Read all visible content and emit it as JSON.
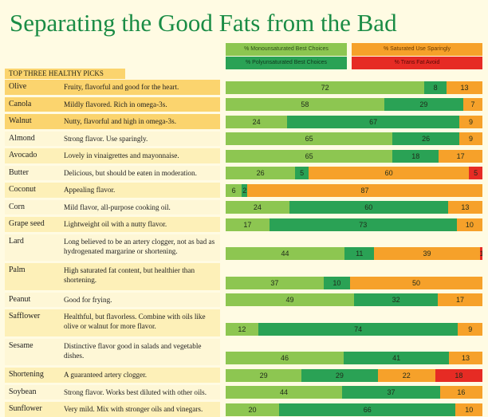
{
  "title": "Separating the Good Fats from the Bad",
  "section_header": "TOP THREE HEALTHY PICKS",
  "legend": {
    "mono": "% Monounsaturated   Best Choices",
    "poly": "% Polyunsaturated   Best Choices",
    "sat": "% Saturated   Use Sparingly",
    "trans": "% Trans Fat   Avoid"
  },
  "colors": {
    "mono": "#8dc651",
    "poly": "#2aa255",
    "sat": "#f6a12a",
    "trans": "#e62b24",
    "title": "#1a8c45",
    "highlight": "#fbd46e"
  },
  "chart_data": {
    "type": "bar",
    "orientation": "horizontal",
    "stacked": true,
    "title": "Separating the Good Fats from the Bad",
    "series": [
      {
        "name": "% Monounsaturated",
        "values": [
          72,
          58,
          24,
          65,
          65,
          26,
          6,
          24,
          17,
          44,
          37,
          49,
          12,
          46,
          29,
          44,
          20
        ]
      },
      {
        "name": "% Polyunsaturated",
        "values": [
          8,
          29,
          67,
          26,
          18,
          5,
          2,
          60,
          73,
          11,
          10,
          32,
          74,
          41,
          29,
          37,
          66
        ]
      },
      {
        "name": "% Saturated",
        "values": [
          13,
          7,
          9,
          9,
          17,
          60,
          87,
          13,
          10,
          39,
          50,
          17,
          9,
          13,
          22,
          16,
          10
        ]
      },
      {
        "name": "% Trans Fat",
        "values": [
          0,
          0,
          0,
          0,
          0,
          5,
          0,
          0,
          0,
          1,
          0,
          0,
          0,
          0,
          18,
          0,
          0
        ]
      }
    ],
    "rows": [
      {
        "name": "Olive",
        "desc": "Fruity, flavorful and good for the heart.",
        "lines": 1,
        "highlight": true,
        "values": [
          72,
          8,
          13,
          0
        ]
      },
      {
        "name": "Canola",
        "desc": "Mildly flavored. Rich in omega-3s.",
        "lines": 1,
        "highlight": true,
        "values": [
          58,
          29,
          7,
          0
        ]
      },
      {
        "name": "Walnut",
        "desc": "Nutty, flavorful and high in omega-3s.",
        "lines": 1,
        "highlight": true,
        "values": [
          24,
          67,
          9,
          0
        ]
      },
      {
        "name": "Almond",
        "desc": "Strong flavor. Use sparingly.",
        "lines": 1,
        "highlight": false,
        "values": [
          65,
          26,
          9,
          0
        ]
      },
      {
        "name": "Avocado",
        "desc": "Lovely in vinaigrettes and mayonnaise.",
        "lines": 1,
        "highlight": false,
        "values": [
          65,
          18,
          17,
          0
        ]
      },
      {
        "name": "Butter",
        "desc": "Delicious, but should be eaten in moderation.",
        "lines": 1,
        "highlight": false,
        "values": [
          26,
          5,
          60,
          5
        ]
      },
      {
        "name": "Coconut",
        "desc": "Appealing flavor.",
        "lines": 1,
        "highlight": false,
        "values": [
          6,
          2,
          87,
          0
        ]
      },
      {
        "name": "Corn",
        "desc": "Mild flavor, all-purpose cooking oil.",
        "lines": 1,
        "highlight": false,
        "values": [
          24,
          60,
          13,
          0
        ]
      },
      {
        "name": "Grape seed",
        "desc": "Lightweight oil with a nutty flavor.",
        "lines": 1,
        "highlight": false,
        "values": [
          17,
          73,
          10,
          0
        ]
      },
      {
        "name": "Lard",
        "desc": "Long believed to be an artery clogger, not as bad as hydrogenated margarine or shortening.",
        "lines": 2,
        "highlight": false,
        "values": [
          44,
          11,
          39,
          1
        ]
      },
      {
        "name": "Palm",
        "desc": "High saturated fat content, but healthier than shortening.",
        "lines": 2,
        "highlight": false,
        "values": [
          37,
          10,
          50,
          0
        ]
      },
      {
        "name": "Peanut",
        "desc": "Good for frying.",
        "lines": 1,
        "highlight": false,
        "values": [
          49,
          32,
          17,
          0
        ]
      },
      {
        "name": "Safflower",
        "desc": "Healthful, but flavorless. Combine with oils like olive or walnut for more flavor.",
        "lines": 2,
        "highlight": false,
        "values": [
          12,
          74,
          9,
          0
        ]
      },
      {
        "name": "Sesame",
        "desc": "Distinctive flavor good in salads and vegetable dishes.",
        "lines": 2,
        "highlight": false,
        "values": [
          46,
          41,
          13,
          0
        ]
      },
      {
        "name": "Shortening",
        "desc": "A guaranteed artery clogger.",
        "lines": 1,
        "highlight": false,
        "values": [
          29,
          29,
          22,
          18
        ]
      },
      {
        "name": "Soybean",
        "desc": "Strong flavor. Works best diluted with other oils.",
        "lines": 1,
        "highlight": false,
        "values": [
          44,
          37,
          16,
          0
        ]
      },
      {
        "name": "Sunflower",
        "desc": "Very mild. Mix with stronger oils and vinegars.",
        "lines": 1,
        "highlight": false,
        "values": [
          20,
          66,
          10,
          0
        ]
      }
    ]
  }
}
